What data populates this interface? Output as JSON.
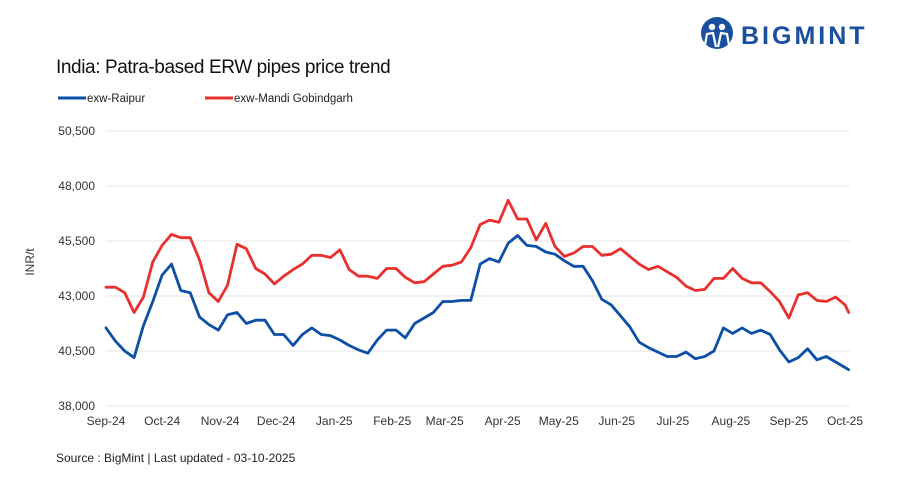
{
  "logo": {
    "text": "BIGMINT",
    "color": "#1a4fa0"
  },
  "chart_data": {
    "type": "line",
    "title": "India: Patra-based ERW pipes price trend",
    "xlabel": "",
    "ylabel": "INR/t",
    "ylim": [
      38000,
      50500
    ],
    "yticks": [
      38000,
      40500,
      43000,
      45500,
      48000,
      50500
    ],
    "ytick_labels": [
      "38,000",
      "40,500",
      "43,000",
      "45,500",
      "48,000",
      "50,500"
    ],
    "xlim": [
      "2024-09-01",
      "2025-10-01"
    ],
    "xticks": [
      "2024-09-01",
      "2024-10-01",
      "2024-11-01",
      "2024-12-01",
      "2025-01-01",
      "2025-02-01",
      "2025-03-01",
      "2025-04-01",
      "2025-05-01",
      "2025-06-01",
      "2025-07-01",
      "2025-08-01",
      "2025-09-01",
      "2025-10-01"
    ],
    "xtick_labels": [
      "Sep-24",
      "Oct-24",
      "Nov-24",
      "Dec-24",
      "Jan-25",
      "Feb-25",
      "Mar-25",
      "Apr-25",
      "May-25",
      "Jun-25",
      "Jul-25",
      "Aug-25",
      "Sep-25",
      "Oct-25"
    ],
    "grid": "horizontal",
    "legend_position": "top-left",
    "x": [
      "2024-09-01",
      "2024-09-06",
      "2024-09-11",
      "2024-09-16",
      "2024-09-21",
      "2024-09-26",
      "2024-10-01",
      "2024-10-06",
      "2024-10-11",
      "2024-10-16",
      "2024-10-21",
      "2024-10-26",
      "2024-10-31",
      "2024-11-05",
      "2024-11-10",
      "2024-11-15",
      "2024-11-20",
      "2024-11-25",
      "2024-11-30",
      "2024-12-05",
      "2024-12-10",
      "2024-12-15",
      "2024-12-20",
      "2024-12-25",
      "2024-12-30",
      "2025-01-04",
      "2025-01-09",
      "2025-01-14",
      "2025-01-19",
      "2025-01-24",
      "2025-01-29",
      "2025-02-03",
      "2025-02-08",
      "2025-02-13",
      "2025-02-18",
      "2025-02-23",
      "2025-02-28",
      "2025-03-05",
      "2025-03-10",
      "2025-03-15",
      "2025-03-20",
      "2025-03-25",
      "2025-03-30",
      "2025-04-04",
      "2025-04-09",
      "2025-04-14",
      "2025-04-19",
      "2025-04-24",
      "2025-04-29",
      "2025-05-04",
      "2025-05-09",
      "2025-05-14",
      "2025-05-19",
      "2025-05-24",
      "2025-05-29",
      "2025-06-03",
      "2025-06-08",
      "2025-06-13",
      "2025-06-18",
      "2025-06-23",
      "2025-06-28",
      "2025-07-03",
      "2025-07-08",
      "2025-07-13",
      "2025-07-18",
      "2025-07-23",
      "2025-07-28",
      "2025-08-02",
      "2025-08-07",
      "2025-08-12",
      "2025-08-17",
      "2025-08-22",
      "2025-08-27",
      "2025-09-01",
      "2025-09-06",
      "2025-09-11",
      "2025-09-16",
      "2025-09-21",
      "2025-09-26",
      "2025-10-01",
      "2025-10-03"
    ],
    "series": [
      {
        "name": "exw-Raipur",
        "color": "#0d4ea6",
        "values": [
          41550,
          40950,
          40500,
          40200,
          41650,
          42750,
          43950,
          44450,
          43250,
          43150,
          42050,
          41700,
          41450,
          42150,
          42250,
          41750,
          41900,
          41900,
          41250,
          41250,
          40750,
          41250,
          41550,
          41250,
          41200,
          41000,
          40750,
          40550,
          40400,
          41000,
          41450,
          41450,
          41100,
          41750,
          42000,
          42250,
          42750,
          42750,
          42800,
          42800,
          44450,
          44700,
          44550,
          45400,
          45750,
          45300,
          45250,
          45000,
          44900,
          44600,
          44350,
          44350,
          43700,
          42850,
          42600,
          42100,
          41600,
          40900,
          40650,
          40450,
          40250,
          40250,
          40450,
          40150,
          40250,
          40500,
          41550,
          41300,
          41550,
          41300,
          41450,
          41250,
          40550,
          40000,
          40200,
          40600,
          40100,
          40250,
          40000,
          39750,
          39650
        ]
      },
      {
        "name": "exw-Mandi Gobindgarh",
        "color": "#e8312f",
        "values": [
          43400,
          43400,
          43150,
          42250,
          42950,
          44550,
          45300,
          45800,
          45650,
          45650,
          44650,
          43150,
          42750,
          43500,
          45350,
          45150,
          44250,
          44000,
          43550,
          43900,
          44200,
          44450,
          44850,
          44850,
          44750,
          45100,
          44200,
          43900,
          43900,
          43800,
          44250,
          44250,
          43850,
          43600,
          43650,
          44000,
          44350,
          44400,
          44550,
          45200,
          46250,
          46450,
          46350,
          47350,
          46500,
          46500,
          45550,
          46300,
          45250,
          44800,
          44950,
          45250,
          45250,
          44850,
          44900,
          45150,
          44800,
          44450,
          44200,
          44350,
          44100,
          43850,
          43450,
          43250,
          43300,
          43800,
          43800,
          44250,
          43800,
          43600,
          43600,
          43200,
          42750,
          42000,
          43050,
          43150,
          42800,
          42750,
          42950,
          42600,
          42250
        ]
      }
    ]
  },
  "source": "Source : BigMint | Last updated - 03-10-2025"
}
